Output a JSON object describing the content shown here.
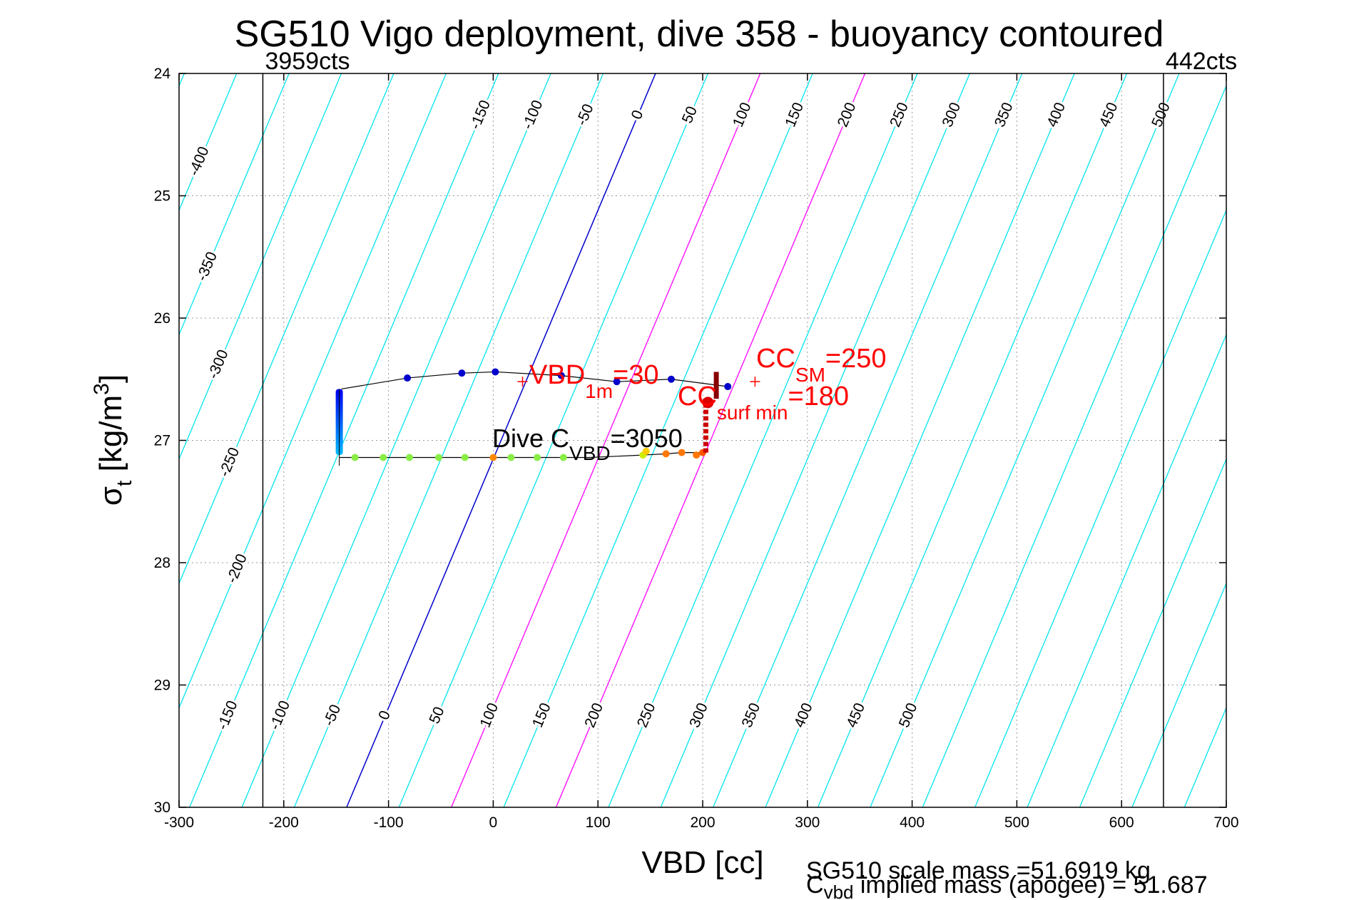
{
  "chart_data": {
    "type": "scatter",
    "title": "SG510 Vigo deployment, dive 358 - buoyancy contoured",
    "xlabel": "VBD [cc]",
    "ylabel": "σt [kg/m3]",
    "ylabel_sigma": "σ",
    "ylabel_sub": "t",
    "ylabel_rest": " [kg/m",
    "ylabel_sup": "3",
    "ylabel_close": "]",
    "xlim": [
      -300,
      700
    ],
    "ylim": [
      24,
      30
    ],
    "y_reversed": true,
    "grid": true,
    "xticks": [
      -300,
      -200,
      -100,
      0,
      100,
      200,
      300,
      400,
      500,
      600,
      700
    ],
    "yticks": [
      24,
      25,
      26,
      27,
      28,
      29,
      30
    ],
    "x_tick_labels": [
      "-300",
      "-200",
      "-100",
      "0",
      "100",
      "200",
      "300",
      "400",
      "500",
      "600",
      "700"
    ],
    "y_tick_labels": [
      "24",
      "25",
      "26",
      "27",
      "28",
      "29",
      "30"
    ],
    "vertical_limits": [
      {
        "x": -220,
        "label": "3959cts"
      },
      {
        "x": 640,
        "label": "442cts"
      }
    ],
    "contour_ref_vbd_at_sigma24": 155,
    "contour_ref_vbd_at_sigma30": -140,
    "contour_spacing_cc": 50,
    "contour_levels": [
      -550,
      -500,
      -450,
      -400,
      -350,
      -300,
      -250,
      -200,
      -150,
      -100,
      -50,
      0,
      50,
      100,
      150,
      200,
      250,
      300,
      350,
      400,
      450,
      500,
      550,
      600,
      650,
      700,
      750,
      800
    ],
    "contour_labels_top": [
      "-150",
      "-100",
      "-50",
      "0",
      "50",
      "100",
      "150",
      "200",
      "250",
      "300",
      "350",
      "400",
      "450",
      "500"
    ],
    "contour_labels_bottom": [
      "-150",
      "-100",
      "-50",
      "0",
      "50",
      "100",
      "150",
      "200",
      "250",
      "300",
      "350",
      "400",
      "450",
      "500"
    ],
    "contour_labels_left": [
      "-400",
      "-350",
      "-300",
      "-250",
      "-200"
    ],
    "contour_colors": {
      "default": "#00e5ee",
      "zero": "#0000cc",
      "highlight": "#ff00ff"
    },
    "highlight_contours": [
      100,
      200
    ],
    "descent_line": [
      [
        -145,
        26.58
      ],
      [
        -82,
        26.49
      ],
      [
        -30,
        26.45
      ],
      [
        2,
        26.44
      ],
      [
        65,
        26.47
      ],
      [
        118,
        26.52
      ],
      [
        170,
        26.5
      ],
      [
        224,
        26.56
      ]
    ],
    "descent_points": [
      {
        "x": -82,
        "y": 26.49,
        "color": "#0000cc"
      },
      {
        "x": -30,
        "y": 26.45,
        "color": "#0000cc"
      },
      {
        "x": 2,
        "y": 26.44,
        "color": "#0000cc"
      },
      {
        "x": 65,
        "y": 26.47,
        "color": "#0000cc"
      },
      {
        "x": 118,
        "y": 26.52,
        "color": "#0000cc"
      },
      {
        "x": 170,
        "y": 26.5,
        "color": "#0000cc"
      },
      {
        "x": 224,
        "y": 26.56,
        "color": "#0000cc"
      }
    ],
    "apogee_column": {
      "x": -147,
      "y_from": 26.58,
      "y_to": 27.12,
      "color_top": "#0000ee",
      "color_bottom": "#00bbff"
    },
    "ascent_line": [
      [
        -147,
        27.14
      ],
      [
        -132,
        27.14
      ],
      [
        -105,
        27.14
      ],
      [
        -80,
        27.14
      ],
      [
        -52,
        27.14
      ],
      [
        -27,
        27.14
      ],
      [
        0,
        27.14
      ],
      [
        17,
        27.14
      ],
      [
        42,
        27.14
      ],
      [
        67,
        27.14
      ],
      [
        92,
        27.14
      ],
      [
        117,
        27.13
      ],
      [
        143,
        27.12
      ],
      [
        165,
        27.11
      ],
      [
        180,
        27.1
      ],
      [
        197,
        27.1
      ],
      [
        203,
        27.08
      ]
    ],
    "ascent_points": [
      {
        "x": -132,
        "y": 27.14,
        "color": "#88ee44"
      },
      {
        "x": -105,
        "y": 27.14,
        "color": "#88ee44"
      },
      {
        "x": -80,
        "y": 27.14,
        "color": "#88ee44"
      },
      {
        "x": -52,
        "y": 27.14,
        "color": "#88ee44"
      },
      {
        "x": -27,
        "y": 27.14,
        "color": "#88ee44"
      },
      {
        "x": 0,
        "y": 27.14,
        "color": "#ff8800"
      },
      {
        "x": 17,
        "y": 27.14,
        "color": "#88ee44"
      },
      {
        "x": 42,
        "y": 27.14,
        "color": "#88ee44"
      },
      {
        "x": 67,
        "y": 27.14,
        "color": "#88ee44"
      },
      {
        "x": 143,
        "y": 27.12,
        "color": "#ccee00"
      },
      {
        "x": 146,
        "y": 27.09,
        "color": "#ffcc00"
      },
      {
        "x": 165,
        "y": 27.11,
        "color": "#ff7700"
      },
      {
        "x": 180,
        "y": 27.1,
        "color": "#ff7700"
      },
      {
        "x": 194,
        "y": 27.12,
        "color": "#ff7700"
      },
      {
        "x": 200,
        "y": 27.1,
        "color": "#ff5500"
      }
    ],
    "surface_column": {
      "x": 203,
      "y_from": 27.1,
      "y_to": 26.7,
      "color": "#cc0000"
    },
    "surface_cluster": {
      "x": 205,
      "y": 26.69,
      "color": "#dd0000"
    },
    "dark_bar": {
      "x": 213,
      "y_from": 26.44,
      "y_to": 26.66,
      "color": "#880000"
    },
    "markers": [
      {
        "x": 28,
        "y": 26.52,
        "color": "#ff0000"
      },
      {
        "x": 250,
        "y": 26.52,
        "color": "#ff0000"
      }
    ],
    "annotations": {
      "vbd1m_main": "VBD",
      "vbd1m_sub": "1m",
      "vbd1m_val": "=30",
      "ccsm_main": "CC",
      "ccsm_sub": "SM",
      "ccsm_val": "=250",
      "ccsurf_main": "CC",
      "ccsurf_sub": "surf min",
      "ccsurf_val": "=180",
      "dive_main": "Dive C",
      "dive_sub": "VBD",
      "dive_val": "=3050"
    },
    "footer": {
      "line1": "SG510 scale mass =51.6919 kg",
      "line2_main": "C",
      "line2_sub": "vbd",
      "line2_rest": " implied mass (apogee) = 51.687"
    }
  }
}
